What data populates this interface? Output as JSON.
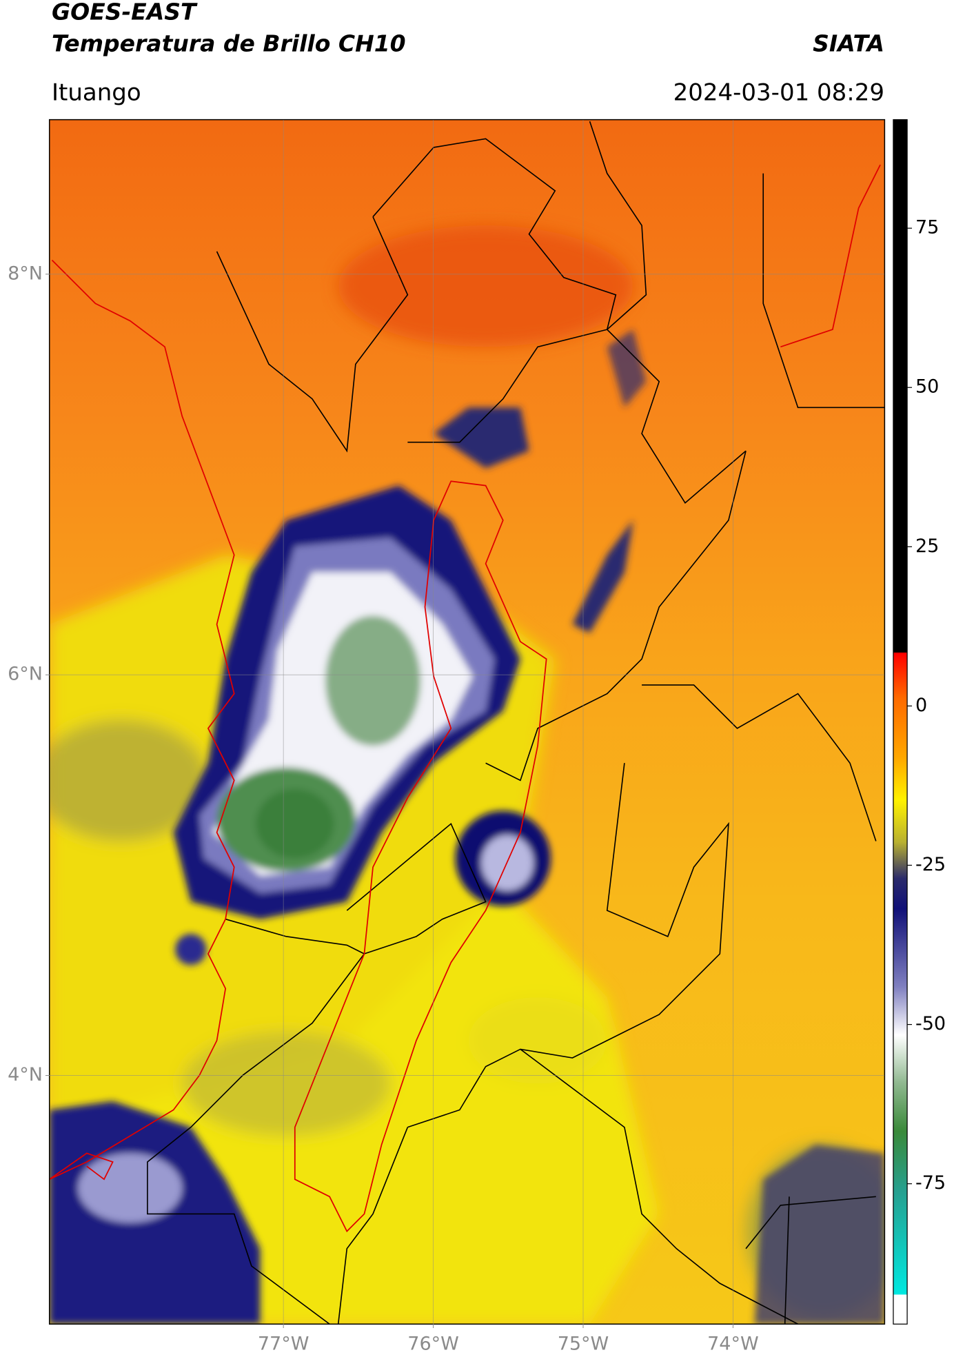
{
  "header": {
    "title": "GOES-EAST",
    "subtitle": "Temperatura de Brillo CH10",
    "source": "SIATA",
    "location": "Ituango",
    "timestamp": "2024-03-01 08:29"
  },
  "map": {
    "xlim": [
      -78.56,
      -72.99
    ],
    "ylim": [
      2.76,
      8.77
    ],
    "xticks": [
      {
        "value": -77,
        "label": "77°W"
      },
      {
        "value": -76,
        "label": "76°W"
      },
      {
        "value": -75,
        "label": "75°W"
      },
      {
        "value": -74,
        "label": "74°W"
      }
    ],
    "yticks": [
      {
        "value": 4,
        "label": "4°N"
      },
      {
        "value": 6,
        "label": "6°N"
      },
      {
        "value": 8,
        "label": "8°N"
      }
    ],
    "grid": true
  },
  "colorbar": {
    "lim": [
      -97,
      92
    ],
    "ticks": [
      -75,
      -50,
      -25,
      0,
      25,
      50,
      75
    ]
  }
}
